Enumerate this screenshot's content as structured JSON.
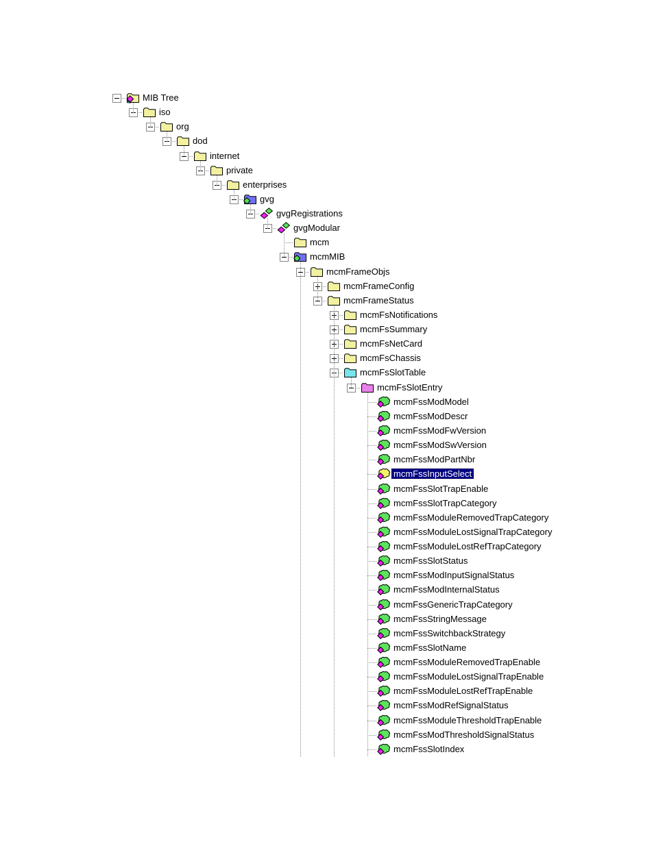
{
  "app": {
    "background": "#ffffff"
  },
  "selection": {
    "background": "#000080",
    "text_color": "#ffffff",
    "focus_dot_color": "#eee8aa"
  },
  "icon_colors": {
    "folder_yellow": [
      "#e9e97e",
      "#f9f9c2"
    ],
    "folder_blue": [
      "#5858e8",
      "#8a8af8"
    ],
    "folder_cyan": [
      "#4ed8e2",
      "#a4f0f4"
    ],
    "folder_magenta": [
      "#e05fe0",
      "#f2a2f2"
    ],
    "gem_green": [
      "#28c828",
      "#84f884"
    ],
    "leaf_green": [
      "#2dce2d",
      "#8cf88c"
    ],
    "leaf_selected": [
      "#e8e838",
      "#ffff9c"
    ],
    "diamond_magenta": "#f020f0",
    "root_accent_teal": "#18b8a8",
    "outline": "#000000",
    "line_color": "#8c8c8c",
    "box_border": "#848484"
  },
  "tree": {
    "nodes": [
      {
        "label": "MIB Tree",
        "level": 0,
        "box": "minus",
        "icon": "root",
        "selected": false
      },
      {
        "label": "iso",
        "level": 1,
        "box": "minus",
        "icon": "folder",
        "selected": false
      },
      {
        "label": "org",
        "level": 2,
        "box": "minus",
        "icon": "folder",
        "selected": false
      },
      {
        "label": "dod",
        "level": 3,
        "box": "minus",
        "icon": "folder",
        "selected": false
      },
      {
        "label": "internet",
        "level": 4,
        "box": "minus",
        "icon": "folder",
        "selected": false
      },
      {
        "label": "private",
        "level": 5,
        "box": "minus",
        "icon": "folder",
        "selected": false
      },
      {
        "label": "enterprises",
        "level": 6,
        "box": "minus",
        "icon": "folder",
        "selected": false
      },
      {
        "label": "gvg",
        "level": 7,
        "box": "minus",
        "icon": "folder-blue",
        "selected": false
      },
      {
        "label": "gvgRegistrations",
        "level": 8,
        "box": "minus",
        "icon": "module",
        "selected": false
      },
      {
        "label": "gvgModular",
        "level": 9,
        "box": "minus",
        "icon": "module",
        "selected": false
      },
      {
        "label": "mcm",
        "level": 10,
        "box": null,
        "icon": "folder",
        "selected": false
      },
      {
        "label": "mcmMIB",
        "level": 10,
        "box": "minus",
        "icon": "folder-blue",
        "selected": false,
        "children_continue": true
      },
      {
        "label": "mcmFrameObjs",
        "level": 11,
        "box": "minus",
        "icon": "folder",
        "selected": false
      },
      {
        "label": "mcmFrameConfig",
        "level": 12,
        "box": "plus",
        "icon": "folder",
        "selected": false
      },
      {
        "label": "mcmFrameStatus",
        "level": 12,
        "box": "minus",
        "icon": "folder",
        "selected": false,
        "children_continue": true
      },
      {
        "label": "mcmFsNotifications",
        "level": 13,
        "box": "plus",
        "icon": "folder",
        "selected": false
      },
      {
        "label": "mcmFsSummary",
        "level": 13,
        "box": "plus",
        "icon": "folder",
        "selected": false
      },
      {
        "label": "mcmFsNetCard",
        "level": 13,
        "box": "plus",
        "icon": "folder",
        "selected": false
      },
      {
        "label": "mcmFsChassis",
        "level": 13,
        "box": "plus",
        "icon": "folder",
        "selected": false
      },
      {
        "label": "mcmFsSlotTable",
        "level": 13,
        "box": "minus",
        "icon": "folder-cyan",
        "selected": false
      },
      {
        "label": "mcmFsSlotEntry",
        "level": 14,
        "box": "minus",
        "icon": "folder-magenta",
        "selected": false,
        "children_continue": true
      },
      {
        "label": "mcmFssModModel",
        "level": 15,
        "box": null,
        "icon": "leaf",
        "selected": false
      },
      {
        "label": "mcmFssModDescr",
        "level": 15,
        "box": null,
        "icon": "leaf",
        "selected": false
      },
      {
        "label": "mcmFssModFwVersion",
        "level": 15,
        "box": null,
        "icon": "leaf",
        "selected": false
      },
      {
        "label": "mcmFssModSwVersion",
        "level": 15,
        "box": null,
        "icon": "leaf",
        "selected": false
      },
      {
        "label": "mcmFssModPartNbr",
        "level": 15,
        "box": null,
        "icon": "leaf",
        "selected": false
      },
      {
        "label": "mcmFssInputSelect",
        "level": 15,
        "box": null,
        "icon": "leaf",
        "selected": true
      },
      {
        "label": "mcmFssSlotTrapEnable",
        "level": 15,
        "box": null,
        "icon": "leaf",
        "selected": false
      },
      {
        "label": "mcmFssSlotTrapCategory",
        "level": 15,
        "box": null,
        "icon": "leaf",
        "selected": false
      },
      {
        "label": "mcmFssModuleRemovedTrapCategory",
        "level": 15,
        "box": null,
        "icon": "leaf",
        "selected": false
      },
      {
        "label": "mcmFssModuleLostSignalTrapCategory",
        "level": 15,
        "box": null,
        "icon": "leaf",
        "selected": false
      },
      {
        "label": "mcmFssModuleLostRefTrapCategory",
        "level": 15,
        "box": null,
        "icon": "leaf",
        "selected": false
      },
      {
        "label": "mcmFssSlotStatus",
        "level": 15,
        "box": null,
        "icon": "leaf",
        "selected": false
      },
      {
        "label": "mcmFssModInputSignalStatus",
        "level": 15,
        "box": null,
        "icon": "leaf",
        "selected": false
      },
      {
        "label": "mcmFssModInternalStatus",
        "level": 15,
        "box": null,
        "icon": "leaf",
        "selected": false
      },
      {
        "label": "mcmFssGenericTrapCategory",
        "level": 15,
        "box": null,
        "icon": "leaf",
        "selected": false
      },
      {
        "label": "mcmFssStringMessage",
        "level": 15,
        "box": null,
        "icon": "leaf",
        "selected": false
      },
      {
        "label": "mcmFssSwitchbackStrategy",
        "level": 15,
        "box": null,
        "icon": "leaf",
        "selected": false
      },
      {
        "label": "mcmFssSlotName",
        "level": 15,
        "box": null,
        "icon": "leaf",
        "selected": false
      },
      {
        "label": "mcmFssModuleRemovedTrapEnable",
        "level": 15,
        "box": null,
        "icon": "leaf",
        "selected": false
      },
      {
        "label": "mcmFssModuleLostSignalTrapEnable",
        "level": 15,
        "box": null,
        "icon": "leaf",
        "selected": false
      },
      {
        "label": "mcmFssModuleLostRefTrapEnable",
        "level": 15,
        "box": null,
        "icon": "leaf",
        "selected": false
      },
      {
        "label": "mcmFssModRefSignalStatus",
        "level": 15,
        "box": null,
        "icon": "leaf",
        "selected": false
      },
      {
        "label": "mcmFssModuleThresholdTrapEnable",
        "level": 15,
        "box": null,
        "icon": "leaf",
        "selected": false
      },
      {
        "label": "mcmFssModThresholdSignalStatus",
        "level": 15,
        "box": null,
        "icon": "leaf",
        "selected": false
      },
      {
        "label": "mcmFssSlotIndex",
        "level": 15,
        "box": null,
        "icon": "leaf",
        "selected": false
      }
    ]
  }
}
